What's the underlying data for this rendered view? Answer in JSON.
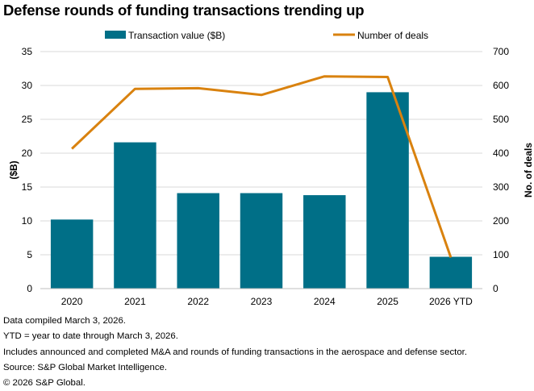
{
  "chart_data": {
    "type": "bar+line",
    "title": "Defense rounds of funding transactions trending up",
    "categories": [
      "2020",
      "2021",
      "2022",
      "2023",
      "2024",
      "2025",
      "2026 YTD"
    ],
    "series": [
      {
        "name": "Transaction value ($B)",
        "kind": "bar",
        "axis": "left",
        "color": "#006f87",
        "values": [
          10.2,
          21.6,
          14.1,
          14.1,
          13.8,
          29.0,
          4.7
        ]
      },
      {
        "name": "Number of deals",
        "kind": "line",
        "axis": "right",
        "color": "#d9820f",
        "values": [
          413,
          590,
          592,
          572,
          627,
          625,
          92
        ]
      }
    ],
    "y_left": {
      "label": "($B)",
      "range": [
        0,
        35
      ],
      "ticks": [
        "0",
        "5",
        "10",
        "15",
        "20",
        "25",
        "30",
        "35"
      ]
    },
    "y_right": {
      "label": "No. of deals",
      "range": [
        0,
        700
      ],
      "ticks": [
        "0",
        "100",
        "200",
        "300",
        "400",
        "500",
        "600",
        "700"
      ]
    },
    "legend_position": "top",
    "grid": "horizontal"
  },
  "footnotes": [
    "Data compiled March 3, 2026.",
    "YTD = year to date through March 3, 2026.",
    "Includes announced and completed M&A and rounds of funding transactions in the aerospace and defense sector.",
    "Source: S&P Global Market Intelligence.",
    "© 2026 S&P Global."
  ]
}
